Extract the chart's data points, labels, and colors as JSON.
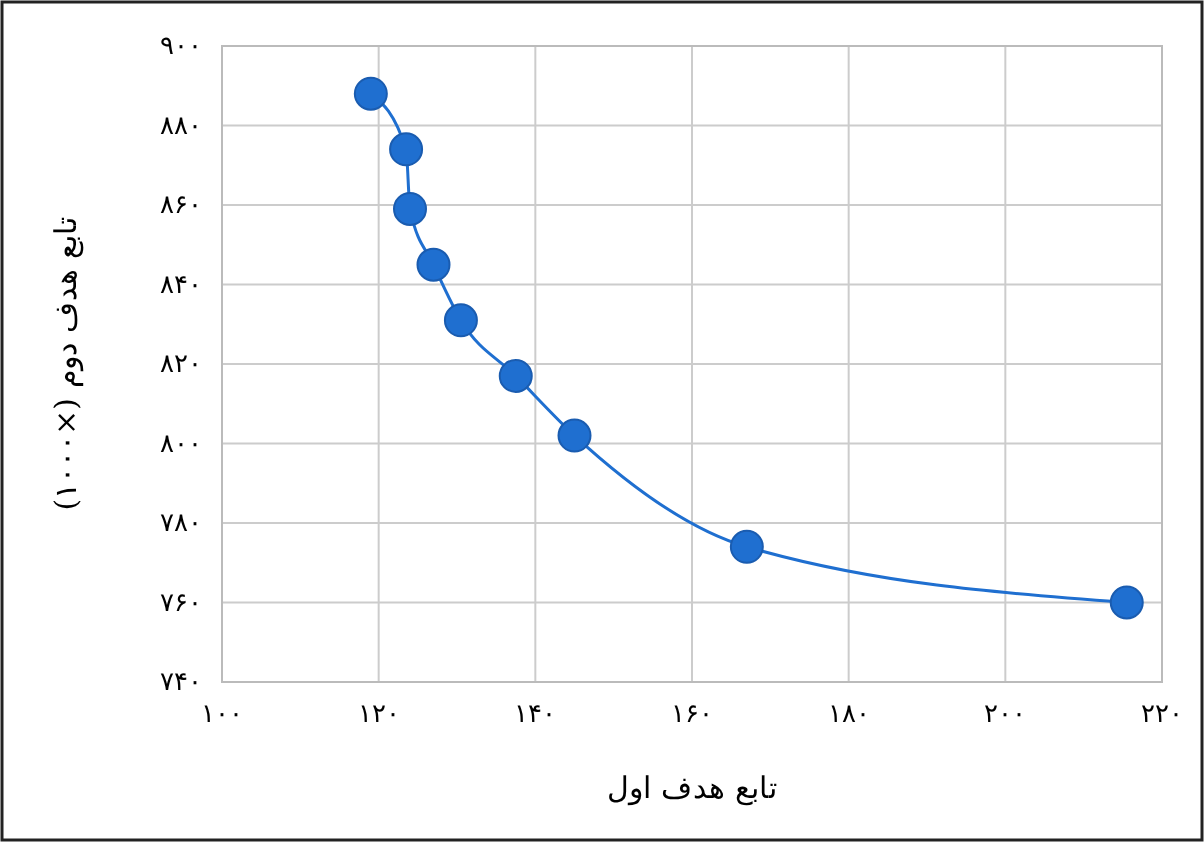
{
  "chart_data": {
    "type": "line",
    "xlabel": "تابع هدف اول",
    "ylabel": "تابع هدف دوم (×۱۰۰۰)",
    "x": [
      119,
      123.5,
      124,
      127,
      130.5,
      137.5,
      145,
      167,
      215.5
    ],
    "series": [
      {
        "color": "#1f6fd0",
        "values": [
          888,
          874,
          859,
          845,
          831,
          817,
          802,
          774,
          760
        ]
      }
    ],
    "xlim": [
      100,
      220
    ],
    "xticks": [
      {
        "value": 100,
        "label": "۱۰۰"
      },
      {
        "value": 120,
        "label": "۱۲۰"
      },
      {
        "value": 140,
        "label": "۱۴۰"
      },
      {
        "value": 160,
        "label": "۱۶۰"
      },
      {
        "value": 180,
        "label": "۱۸۰"
      },
      {
        "value": 200,
        "label": "۲۰۰"
      },
      {
        "value": 220,
        "label": "۲۲۰"
      }
    ],
    "ylim": [
      740,
      900
    ],
    "yticks": [
      {
        "value": 740,
        "label": "۷۴۰"
      },
      {
        "value": 760,
        "label": "۷۶۰"
      },
      {
        "value": 780,
        "label": "۷۸۰"
      },
      {
        "value": 800,
        "label": "۸۰۰"
      },
      {
        "value": 820,
        "label": "۸۲۰"
      },
      {
        "value": 840,
        "label": "۸۴۰"
      },
      {
        "value": 860,
        "label": "۸۶۰"
      },
      {
        "value": 880,
        "label": "۸۸۰"
      },
      {
        "value": 900,
        "label": "۹۰۰"
      }
    ],
    "grid": true,
    "marker": "circle",
    "line_style": "solid"
  }
}
